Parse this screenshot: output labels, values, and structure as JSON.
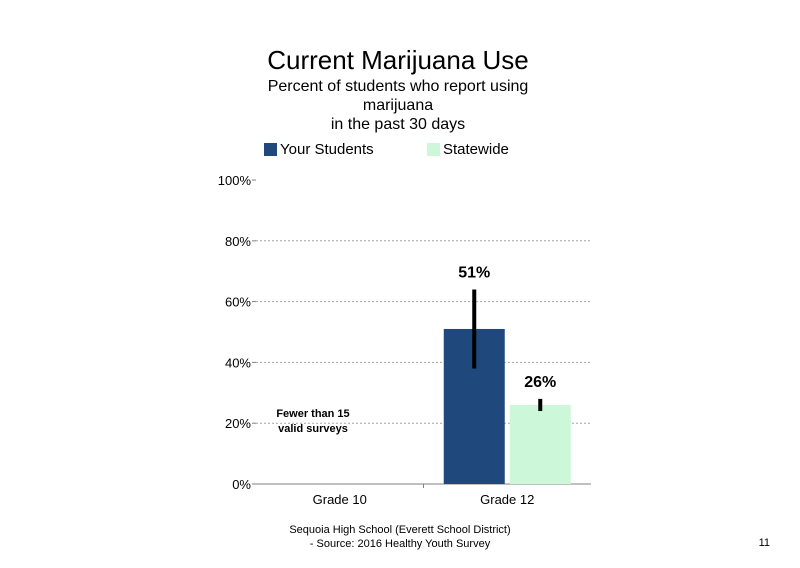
{
  "page_number": "11",
  "footer": {
    "line1": "Sequoia High School (Everett School District)",
    "line2": "- Source: 2016 Healthy Youth Survey"
  },
  "colors": {
    "your_students": "#1F497D",
    "statewide": "#CCF7D9",
    "gridline": "#A6A6A6",
    "error_bar": "#000000"
  },
  "chart_data": {
    "type": "bar",
    "title": "Current Marijuana Use",
    "subtitle_lines": [
      "Percent of students who report using",
      "marijuana",
      "in the past 30 days"
    ],
    "xlabel": "",
    "ylabel": "",
    "categories": [
      "Grade 10",
      "Grade 12"
    ],
    "series": [
      {
        "name": "Your Students",
        "values": [
          null,
          51
        ],
        "labels": [
          "",
          "51%"
        ],
        "error": [
          null,
          [
            38,
            64
          ]
        ]
      },
      {
        "name": "Statewide",
        "values": [
          null,
          26
        ],
        "labels": [
          "",
          "26%"
        ],
        "error": [
          null,
          [
            24,
            28
          ]
        ]
      }
    ],
    "ylim": [
      0,
      100
    ],
    "yticks": [
      0,
      20,
      40,
      60,
      80,
      100
    ],
    "ytick_labels": [
      "0%",
      "20%",
      "40%",
      "60%",
      "80%",
      "100%"
    ],
    "grid": true,
    "legend_position": "top",
    "annotation": "Fewer than 15 valid surveys"
  }
}
